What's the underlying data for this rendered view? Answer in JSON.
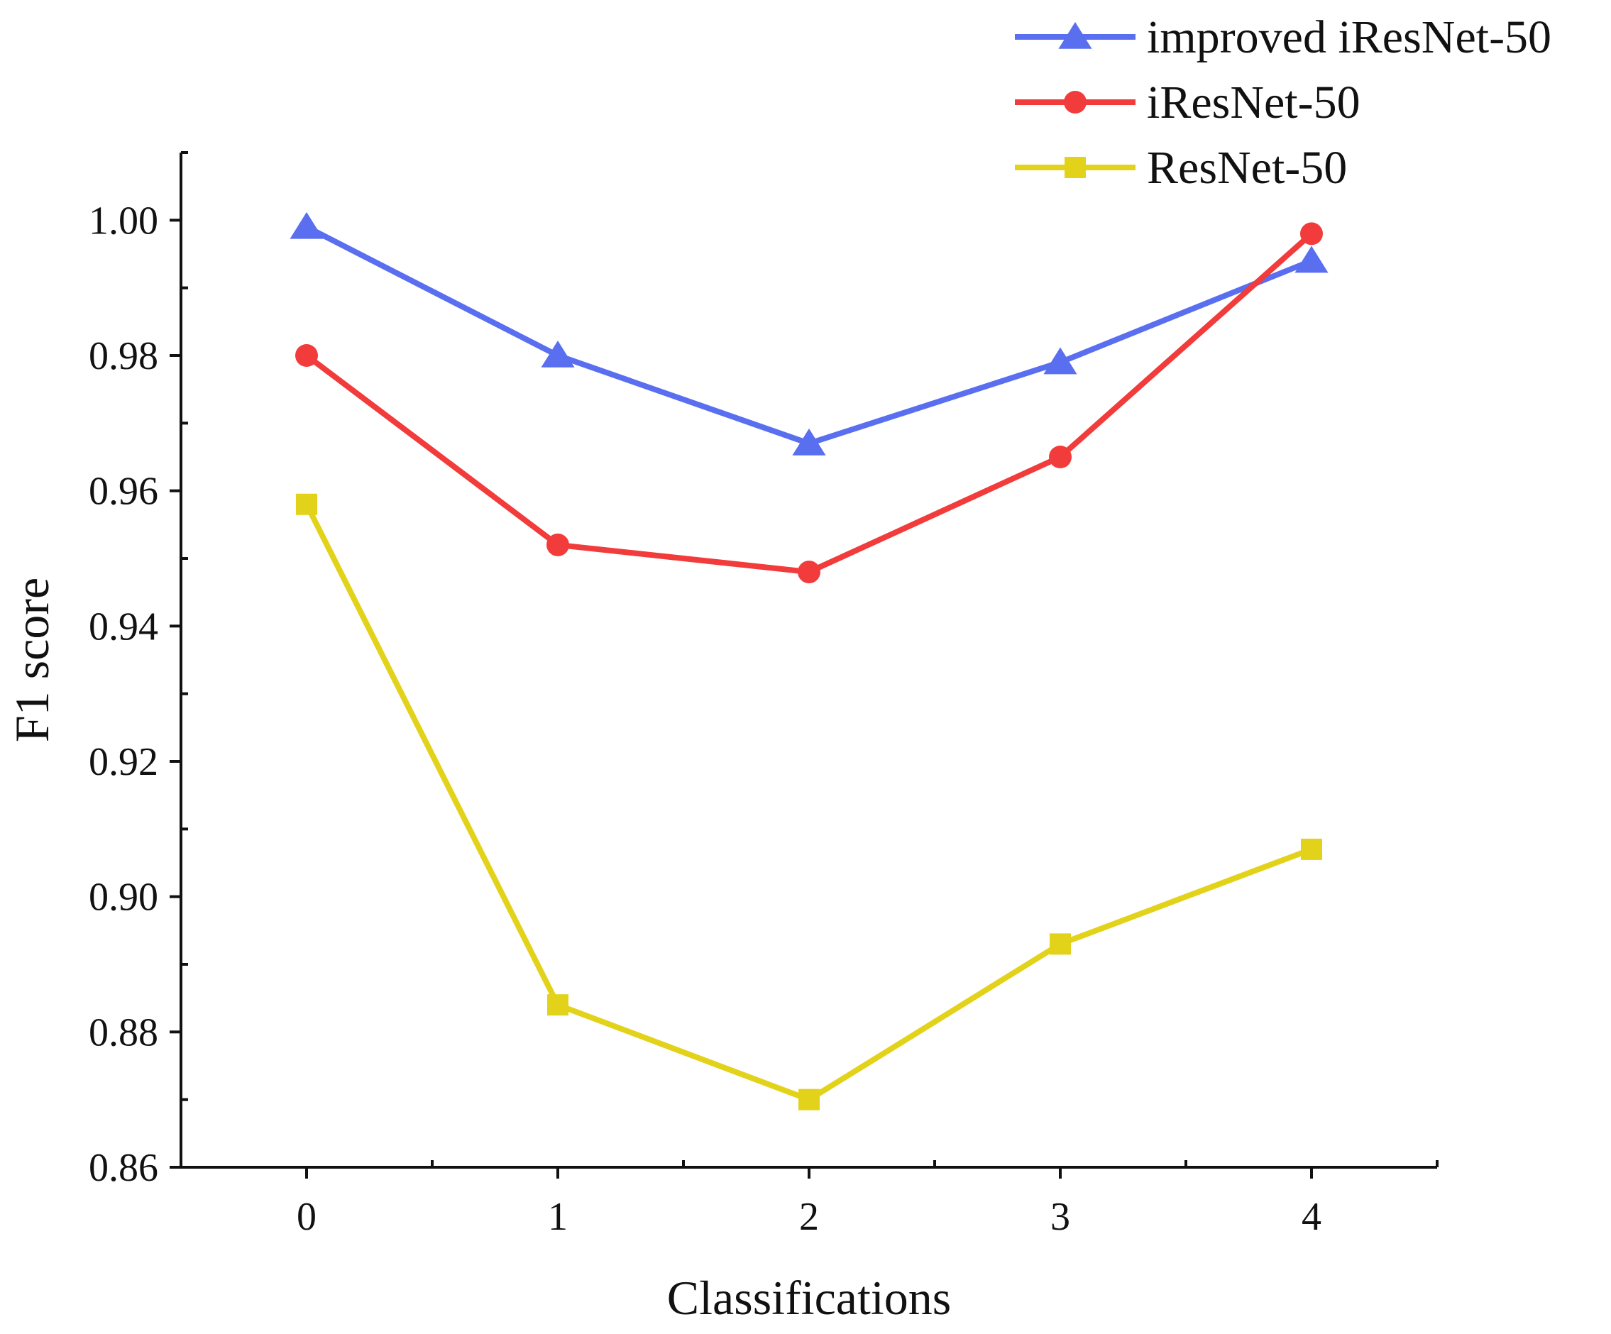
{
  "chart_data": {
    "type": "line",
    "title": "",
    "xlabel": "Classifications",
    "ylabel": "F1 score",
    "x": [
      0,
      1,
      2,
      3,
      4
    ],
    "xlim": [
      -0.5,
      4.5
    ],
    "ylim": [
      0.86,
      1.01
    ],
    "x_ticks": [
      "0",
      "1",
      "2",
      "3",
      "4"
    ],
    "y_ticks": [
      "0.86",
      "0.88",
      "0.90",
      "0.92",
      "0.94",
      "0.96",
      "0.98",
      "1.00"
    ],
    "grid": false,
    "legend_position": "top-right",
    "series": [
      {
        "name": "improved iResNet-50",
        "color": "#5a6ef0",
        "marker": "triangle",
        "values": [
          0.999,
          0.98,
          0.967,
          0.979,
          0.994
        ]
      },
      {
        "name": "iResNet-50",
        "color": "#f23b3b",
        "marker": "circle",
        "values": [
          0.98,
          0.952,
          0.948,
          0.965,
          0.998
        ]
      },
      {
        "name": "ResNet-50",
        "color": "#e3d21a",
        "marker": "square",
        "values": [
          0.958,
          0.884,
          0.87,
          0.893,
          0.907
        ]
      }
    ]
  }
}
